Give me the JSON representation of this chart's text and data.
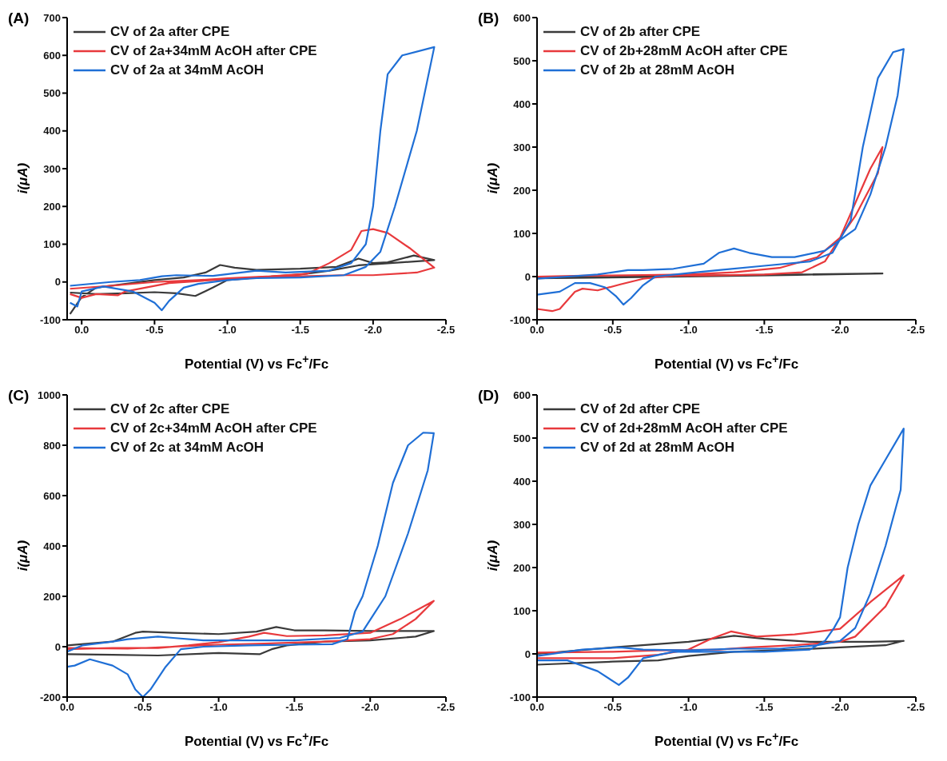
{
  "chart_data": [
    {
      "type": "line",
      "title": "(A)",
      "xlabel": "Potential (V) vs Fc$^{+}$/Fc",
      "ylabel": "i(μA)",
      "legend": "top left",
      "marker": "none",
      "xlim": [
        0.1,
        -2.5
      ],
      "xticks": [
        {
          "value": 0,
          "label": "0.0"
        },
        -0.5,
        {
          "value": -1,
          "label": "-1.0"
        },
        -1.5,
        {
          "value": -2,
          "label": "-2.0"
        },
        -2.5
      ],
      "ylim": [
        -100,
        700
      ],
      "yticks": [
        -100,
        0,
        100,
        200,
        300,
        400,
        500,
        600,
        700
      ],
      "series": [
        {
          "name": "CV of 2a after CPE",
          "color": "#3a3a3a",
          "x": [
            0.08,
            0.0,
            -0.1,
            -0.3,
            -0.5,
            -0.7,
            -0.85,
            -0.95,
            -1.05,
            -1.2,
            -1.5,
            -1.75,
            -1.9,
            -2.0,
            -2.1,
            -2.28,
            -2.42,
            -2.2,
            -2.0,
            -1.9,
            -1.7,
            -1.5,
            -1.2,
            -1.0,
            -0.9,
            -0.78,
            -0.65,
            -0.5,
            -0.3,
            -0.1,
            0.08
          ],
          "values": [
            -85,
            -40,
            -15,
            -5,
            5,
            12,
            25,
            45,
            38,
            32,
            35,
            40,
            62,
            50,
            52,
            70,
            58,
            52,
            47,
            44,
            30,
            20,
            12,
            5,
            -15,
            -37,
            -30,
            -27,
            -30,
            -32,
            -28
          ]
        },
        {
          "name": "CV of 2a+34mM AcOH after CPE",
          "color": "#e8393c",
          "x": [
            0.08,
            -0.2,
            -0.5,
            -0.8,
            -1.0,
            -1.3,
            -1.55,
            -1.7,
            -1.85,
            -1.92,
            -2.0,
            -2.1,
            -2.25,
            -2.42,
            -2.3,
            -2.0,
            -1.8,
            -1.5,
            -1.2,
            -0.9,
            -0.6,
            -0.3,
            -0.25,
            -0.1,
            0.0,
            0.08
          ],
          "values": [
            -18,
            -10,
            0,
            5,
            10,
            15,
            22,
            50,
            85,
            135,
            140,
            130,
            90,
            38,
            25,
            18,
            18,
            15,
            12,
            5,
            -3,
            -25,
            -35,
            -32,
            -42,
            -32
          ]
        },
        {
          "name": "CV of 2a at 34mM AcOH",
          "color": "#1f6fd6",
          "x": [
            0.08,
            -0.2,
            -0.4,
            -0.55,
            -0.65,
            -0.9,
            -1.2,
            -1.4,
            -1.7,
            -1.85,
            -1.95,
            -2.0,
            -2.05,
            -2.1,
            -2.2,
            -2.42,
            -2.3,
            -2.15,
            -2.05,
            -1.95,
            -1.8,
            -1.5,
            -1.2,
            -1.0,
            -0.8,
            -0.7,
            -0.6,
            -0.55,
            -0.5,
            -0.35,
            -0.15,
            0.0,
            0.03,
            0.08
          ],
          "values": [
            -10,
            0,
            5,
            15,
            18,
            16,
            30,
            25,
            30,
            50,
            100,
            200,
            400,
            550,
            600,
            622,
            400,
            200,
            80,
            40,
            18,
            12,
            10,
            5,
            -5,
            -15,
            -50,
            -75,
            -55,
            -25,
            -12,
            -25,
            -65,
            -55
          ]
        }
      ]
    },
    {
      "type": "line",
      "title": "(B)",
      "xlabel": "Potential (V) vs Fc$^{+}$/Fc",
      "ylabel": "i(μA)",
      "legend": "top left",
      "marker": "none",
      "xlim": [
        0,
        -2.5
      ],
      "xticks": [
        {
          "value": 0,
          "label": "0.0"
        },
        -0.5,
        {
          "value": -1,
          "label": "-1.0"
        },
        -1.5,
        {
          "value": -2,
          "label": "-2.0"
        },
        -2.5
      ],
      "ylim": [
        -100,
        600
      ],
      "yticks": [
        -100,
        0,
        100,
        200,
        300,
        400,
        500,
        600
      ],
      "series": [
        {
          "name": "CV of 2b after CPE",
          "color": "#3a3a3a",
          "x": [
            0,
            -1,
            -2.28,
            -1,
            0
          ],
          "values": [
            -3,
            2,
            7,
            0,
            -4
          ]
        },
        {
          "name": "CV of 2b+28mM AcOH after CPE",
          "color": "#e8393c",
          "x": [
            0,
            -0.1,
            -0.15,
            -0.25,
            -0.3,
            -0.4,
            -0.55,
            -0.7,
            -0.9,
            -1.2,
            -1.5,
            -1.75,
            -1.9,
            -2.0,
            -2.1,
            -2.2,
            -2.28,
            -2.25,
            -2.1,
            -2.0,
            -1.85,
            -1.6,
            -1.3,
            -1.0,
            -0.6,
            -0.3,
            0
          ],
          "values": [
            -75,
            -80,
            -75,
            -35,
            -28,
            -32,
            -18,
            -5,
            2,
            3,
            5,
            10,
            35,
            90,
            170,
            250,
            300,
            240,
            140,
            90,
            45,
            20,
            10,
            5,
            3,
            2,
            0
          ]
        },
        {
          "name": "CV of 2b at 28mM AcOH",
          "color": "#1f6fd6",
          "x": [
            0,
            -0.15,
            -0.25,
            -0.35,
            -0.45,
            -0.52,
            -0.57,
            -0.62,
            -0.7,
            -0.78,
            -1.0,
            -1.2,
            -1.5,
            -1.8,
            -1.95,
            -2.07,
            -2.15,
            -2.25,
            -2.35,
            -2.42,
            -2.38,
            -2.3,
            -2.2,
            -2.1,
            -1.9,
            -1.7,
            -1.55,
            -1.4,
            -1.3,
            -1.2,
            -1.1,
            -0.9,
            -0.7,
            -0.6,
            -0.4,
            -0.2,
            0
          ],
          "values": [
            -42,
            -35,
            -15,
            -15,
            -25,
            -45,
            -65,
            -50,
            -20,
            0,
            8,
            15,
            25,
            35,
            55,
            130,
            300,
            460,
            520,
            527,
            420,
            300,
            190,
            110,
            60,
            45,
            45,
            55,
            65,
            55,
            30,
            18,
            15,
            15,
            5,
            0,
            -5
          ]
        }
      ]
    },
    {
      "type": "line",
      "title": "(C)",
      "xlabel": "Potential (V) vs Fc$^{+}$/Fc",
      "ylabel": "i(μA)",
      "legend": "top left",
      "marker": "none",
      "xlim": [
        0,
        -2.5
      ],
      "xticks": [
        {
          "value": 0,
          "label": "0.0"
        },
        -0.5,
        {
          "value": -1,
          "label": "-1.0"
        },
        -1.5,
        {
          "value": -2,
          "label": "-2.0"
        },
        -2.5
      ],
      "ylim": [
        -200,
        1000
      ],
      "yticks": [
        -200,
        0,
        200,
        400,
        600,
        800,
        1000
      ],
      "series": [
        {
          "name": "CV of 2c after CPE",
          "color": "#3a3a3a",
          "x": [
            0,
            -0.3,
            -0.45,
            -0.5,
            -0.7,
            -1.0,
            -1.25,
            -1.38,
            -1.5,
            -1.7,
            -2.0,
            -2.42,
            -2.3,
            -2.0,
            -1.7,
            -1.45,
            -1.35,
            -1.27,
            -1.0,
            -0.6,
            -0.3,
            0
          ],
          "values": [
            5,
            20,
            55,
            60,
            55,
            50,
            60,
            78,
            65,
            65,
            62,
            62,
            40,
            25,
            20,
            5,
            -10,
            -30,
            -25,
            -35,
            -32,
            -30
          ]
        },
        {
          "name": "CV of 2c+34mM AcOH after CPE",
          "color": "#e8393c",
          "x": [
            0,
            -0.3,
            -0.6,
            -0.8,
            -1.0,
            -1.2,
            -1.3,
            -1.45,
            -1.7,
            -2.0,
            -2.2,
            -2.42,
            -2.3,
            -2.15,
            -2.0,
            -1.7,
            -1.3,
            -1.0,
            -0.7,
            -0.4,
            0
          ],
          "values": [
            -10,
            -5,
            -5,
            5,
            18,
            40,
            55,
            42,
            45,
            55,
            110,
            182,
            110,
            50,
            30,
            20,
            12,
            8,
            0,
            -8,
            -5
          ]
        },
        {
          "name": "CV of 2c at 34mM AcOH",
          "color": "#1f6fd6",
          "x": [
            0,
            -0.05,
            -0.15,
            -0.3,
            -0.4,
            -0.45,
            -0.5,
            -0.55,
            -0.65,
            -0.75,
            -0.9,
            -1.2,
            -1.5,
            -1.75,
            -1.85,
            -1.9,
            -1.95,
            -2.05,
            -2.15,
            -2.25,
            -2.35,
            -2.42,
            -2.38,
            -2.25,
            -2.1,
            -1.95,
            -1.8,
            -1.5,
            -1.2,
            -0.9,
            -0.7,
            -0.6,
            -0.4,
            -0.3,
            -0.1,
            0
          ],
          "values": [
            -80,
            -75,
            -50,
            -75,
            -110,
            -170,
            -200,
            -170,
            -80,
            -10,
            0,
            5,
            8,
            10,
            30,
            140,
            200,
            400,
            650,
            800,
            850,
            848,
            700,
            450,
            200,
            60,
            35,
            25,
            25,
            25,
            35,
            40,
            30,
            20,
            5,
            -20
          ]
        }
      ]
    },
    {
      "type": "line",
      "title": "(D)",
      "xlabel": "Potential (V) vs Fc$^{+}$/Fc",
      "ylabel": "i(μA)",
      "legend": "top left",
      "marker": "none",
      "xlim": [
        0,
        -2.5
      ],
      "xticks": [
        {
          "value": 0,
          "label": "0.0"
        },
        -0.5,
        {
          "value": -1,
          "label": "-1.0"
        },
        -1.5,
        {
          "value": -2,
          "label": "-2.0"
        },
        -2.5
      ],
      "ylim": [
        -100,
        600
      ],
      "yticks": [
        -100,
        0,
        100,
        200,
        300,
        400,
        500,
        600
      ],
      "series": [
        {
          "name": "CV of 2d after CPE",
          "color": "#3a3a3a",
          "x": [
            0,
            -0.5,
            -0.8,
            -1.0,
            -1.3,
            -1.7,
            -2.0,
            -2.3,
            -2.42,
            -2.2,
            -1.8,
            -1.5,
            -1.3,
            -1.0,
            -0.5,
            0
          ],
          "values": [
            -25,
            -18,
            -15,
            -5,
            5,
            10,
            15,
            20,
            30,
            28,
            28,
            35,
            42,
            28,
            15,
            0
          ]
        },
        {
          "name": "CV of 2d+28mM AcOH after CPE",
          "color": "#e8393c",
          "x": [
            0,
            -0.5,
            -0.8,
            -1.0,
            -1.15,
            -1.28,
            -1.45,
            -1.7,
            -2.0,
            -2.2,
            -2.42,
            -2.3,
            -2.1,
            -2.0,
            -1.7,
            -1.4,
            -1.2,
            -0.8,
            -0.5,
            0
          ],
          "values": [
            -10,
            -10,
            -2,
            10,
            35,
            52,
            40,
            45,
            58,
            120,
            182,
            110,
            40,
            28,
            20,
            15,
            10,
            8,
            5,
            3
          ]
        },
        {
          "name": "CV of 2d at 28mM AcOH",
          "color": "#1f6fd6",
          "x": [
            0,
            -0.2,
            -0.4,
            -0.54,
            -0.6,
            -0.7,
            -0.9,
            -1.2,
            -1.5,
            -1.8,
            -1.9,
            -1.96,
            -2.0,
            -2.05,
            -2.12,
            -2.2,
            -2.3,
            -2.42,
            -2.4,
            -2.3,
            -2.2,
            -2.1,
            -2.0,
            -1.85,
            -1.6,
            -1.3,
            -1.0,
            -0.7,
            -0.55,
            -0.3,
            0
          ],
          "values": [
            -15,
            -15,
            -40,
            -72,
            -55,
            -10,
            5,
            5,
            5,
            10,
            30,
            60,
            85,
            200,
            300,
            390,
            450,
            522,
            380,
            250,
            140,
            60,
            30,
            20,
            12,
            12,
            8,
            10,
            15,
            10,
            -5
          ]
        }
      ]
    }
  ]
}
